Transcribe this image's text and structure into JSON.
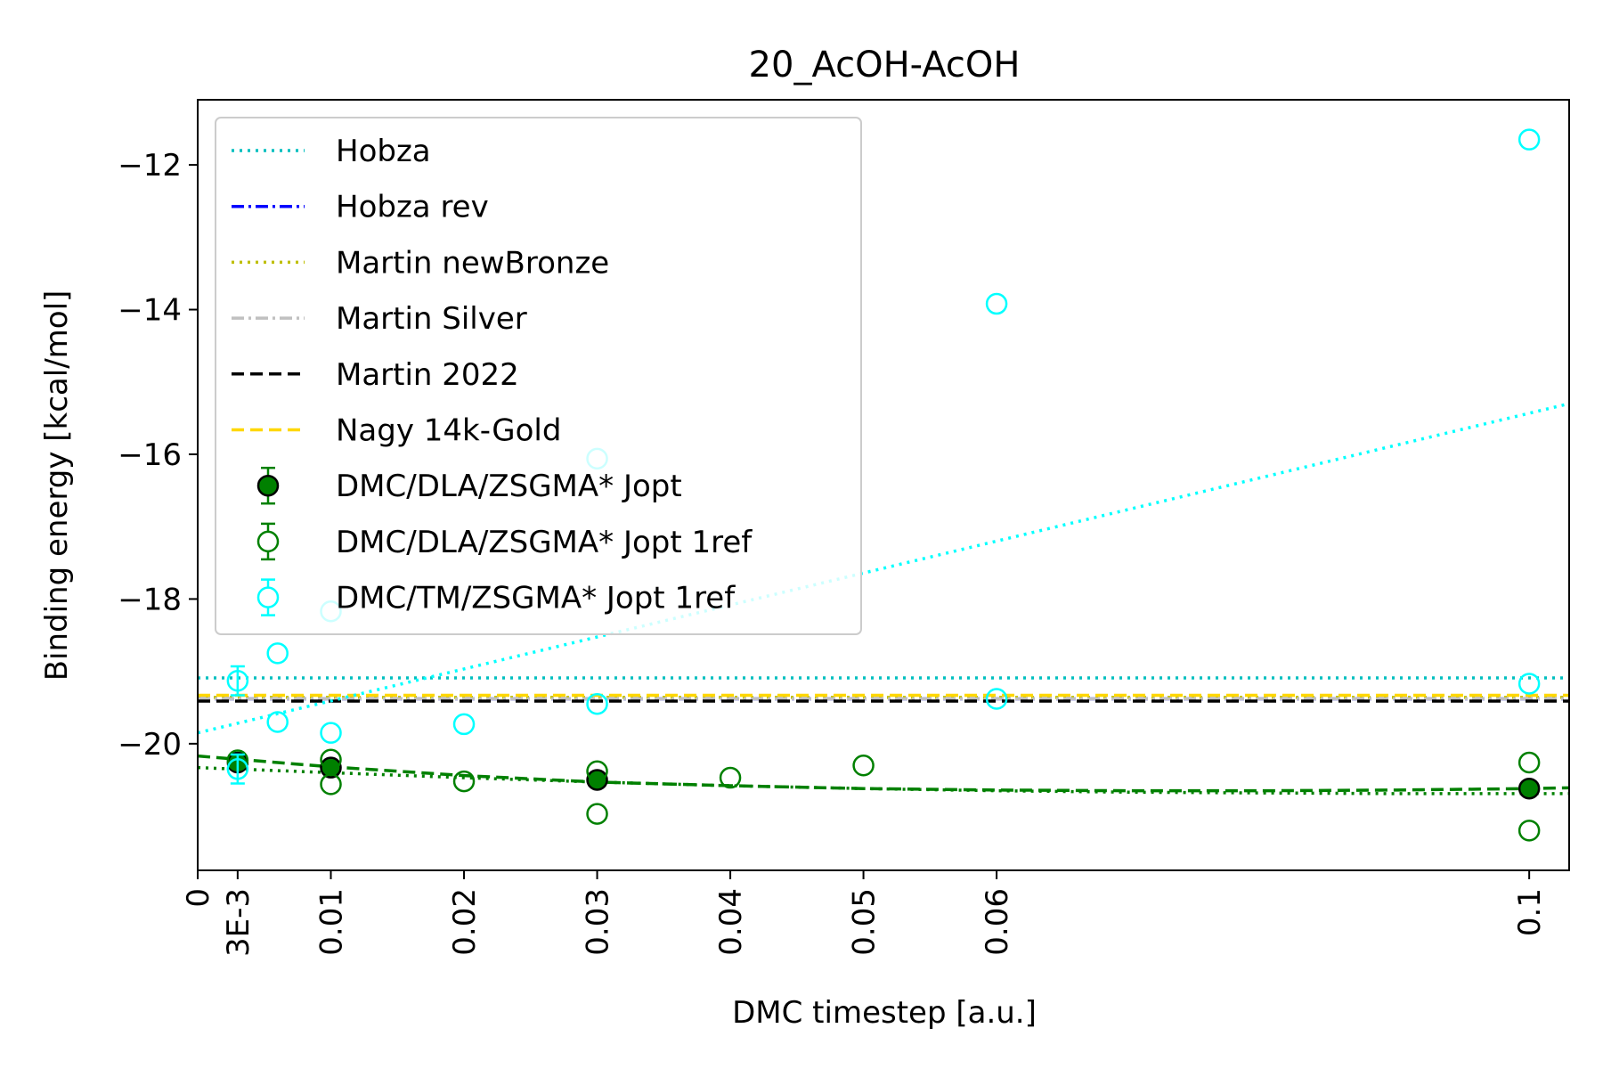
{
  "chart_data": {
    "type": "scatter",
    "title": "20_AcOH-AcOH",
    "xlabel": "DMC timestep [a.u.]",
    "ylabel": "Binding energy [kcal/mol]",
    "xlim": [
      0,
      0.103
    ],
    "ylim": [
      -21.75,
      -11.1
    ],
    "grid": false,
    "legend_position": "top-left",
    "x_ticks": [
      {
        "value": 0,
        "label": "0"
      },
      {
        "value": 0.003,
        "label": "3E-3"
      },
      {
        "value": 0.01,
        "label": "0.01"
      },
      {
        "value": 0.02,
        "label": "0.02"
      },
      {
        "value": 0.03,
        "label": "0.03"
      },
      {
        "value": 0.04,
        "label": "0.04"
      },
      {
        "value": 0.05,
        "label": "0.05"
      },
      {
        "value": 0.06,
        "label": "0.06"
      },
      {
        "value": 0.1,
        "label": "0.1"
      }
    ],
    "y_ticks": [
      {
        "value": -12,
        "label": "−12"
      },
      {
        "value": -14,
        "label": "−14"
      },
      {
        "value": -16,
        "label": "−16"
      },
      {
        "value": -18,
        "label": "−18"
      },
      {
        "value": -20,
        "label": "−20"
      }
    ],
    "reference_lines": [
      {
        "name": "Hobza",
        "y": -19.09,
        "color": "#00bfbf",
        "dash": "dotted"
      },
      {
        "name": "Hobza rev",
        "y": -19.38,
        "color": "#0000ff",
        "dash": "dashdot"
      },
      {
        "name": "Martin newBronze",
        "y": -19.36,
        "color": "#bfbf00",
        "dash": "dotted"
      },
      {
        "name": "Martin Silver",
        "y": -19.38,
        "color": "#c0c0c0",
        "dash": "dashdot"
      },
      {
        "name": "Martin 2022",
        "y": -19.41,
        "color": "#000000",
        "dash": "dashed"
      },
      {
        "name": "Nagy 14k-Gold",
        "y": -19.33,
        "color": "#ffd700",
        "dash": "dashed"
      }
    ],
    "series": [
      {
        "name": "DMC/DLA/ZSGMA* Jopt",
        "color": "#008000",
        "filled": true,
        "points": [
          {
            "x": 0.003,
            "y": -20.26
          },
          {
            "x": 0.01,
            "y": -20.33
          },
          {
            "x": 0.03,
            "y": -20.5
          },
          {
            "x": 0.1,
            "y": -20.62
          }
        ]
      },
      {
        "name": "DMC/DLA/ZSGMA* Jopt 1ref",
        "color": "#008000",
        "filled": false,
        "points": [
          {
            "x": 0.003,
            "y": -20.23
          },
          {
            "x": 0.01,
            "y": -20.22
          },
          {
            "x": 0.01,
            "y": -20.56
          },
          {
            "x": 0.02,
            "y": -20.52
          },
          {
            "x": 0.03,
            "y": -20.38
          },
          {
            "x": 0.03,
            "y": -20.97
          },
          {
            "x": 0.04,
            "y": -20.47
          },
          {
            "x": 0.05,
            "y": -20.3
          },
          {
            "x": 0.1,
            "y": -20.26
          },
          {
            "x": 0.1,
            "y": -21.2
          }
        ]
      },
      {
        "name": "DMC/TM/ZSGMA* Jopt 1ref",
        "color": "#00ffff",
        "filled": false,
        "points": [
          {
            "x": 0.003,
            "y": -19.13,
            "err": 0.2
          },
          {
            "x": 0.003,
            "y": -20.35,
            "err": 0.2
          },
          {
            "x": 0.006,
            "y": -18.75
          },
          {
            "x": 0.006,
            "y": -19.7
          },
          {
            "x": 0.01,
            "y": -18.17
          },
          {
            "x": 0.01,
            "y": -19.85
          },
          {
            "x": 0.02,
            "y": -19.73
          },
          {
            "x": 0.03,
            "y": -16.06
          },
          {
            "x": 0.03,
            "y": -19.45
          },
          {
            "x": 0.06,
            "y": -13.92
          },
          {
            "x": 0.06,
            "y": -19.38
          },
          {
            "x": 0.1,
            "y": -11.65
          },
          {
            "x": 0.1,
            "y": -19.17
          }
        ]
      }
    ],
    "fit_lines": [
      {
        "color": "#008000",
        "dash": "dashed",
        "x": [
          0,
          0.01,
          0.02,
          0.03,
          0.04,
          0.05,
          0.06,
          0.07,
          0.08,
          0.09,
          0.1,
          0.103
        ],
        "y": [
          -20.17,
          -20.32,
          -20.44,
          -20.53,
          -20.58,
          -20.62,
          -20.64,
          -20.65,
          -20.65,
          -20.64,
          -20.62,
          -20.61
        ]
      },
      {
        "color": "#008000",
        "dash": "dotted",
        "x": [
          0,
          0.01,
          0.02,
          0.03,
          0.04,
          0.05,
          0.06,
          0.07,
          0.08,
          0.09,
          0.1,
          0.103
        ],
        "y": [
          -20.33,
          -20.4,
          -20.47,
          -20.53,
          -20.58,
          -20.62,
          -20.65,
          -20.67,
          -20.68,
          -20.69,
          -20.69,
          -20.69
        ]
      },
      {
        "color": "#00ffff",
        "dash": "dotted",
        "x": [
          0,
          0.103
        ],
        "y": [
          -19.85,
          -15.3
        ]
      }
    ],
    "legend": [
      {
        "label": "Hobza",
        "kind": "line",
        "color": "#00bfbf",
        "dash": "dotted"
      },
      {
        "label": "Hobza rev",
        "kind": "line",
        "color": "#0000ff",
        "dash": "dashdot"
      },
      {
        "label": "Martin newBronze",
        "kind": "line",
        "color": "#bfbf00",
        "dash": "dotted"
      },
      {
        "label": "Martin Silver",
        "kind": "line",
        "color": "#c0c0c0",
        "dash": "dashdot"
      },
      {
        "label": "Martin 2022",
        "kind": "line",
        "color": "#000000",
        "dash": "dashed"
      },
      {
        "label": "Nagy 14k-Gold",
        "kind": "line",
        "color": "#ffd700",
        "dash": "dashed"
      },
      {
        "label": "DMC/DLA/ZSGMA* Jopt",
        "kind": "marker",
        "color": "#008000",
        "filled": true
      },
      {
        "label": "DMC/DLA/ZSGMA* Jopt 1ref",
        "kind": "marker",
        "color": "#008000",
        "filled": false
      },
      {
        "label": "DMC/TM/ZSGMA* Jopt 1ref",
        "kind": "marker",
        "color": "#00ffff",
        "filled": false
      }
    ]
  }
}
